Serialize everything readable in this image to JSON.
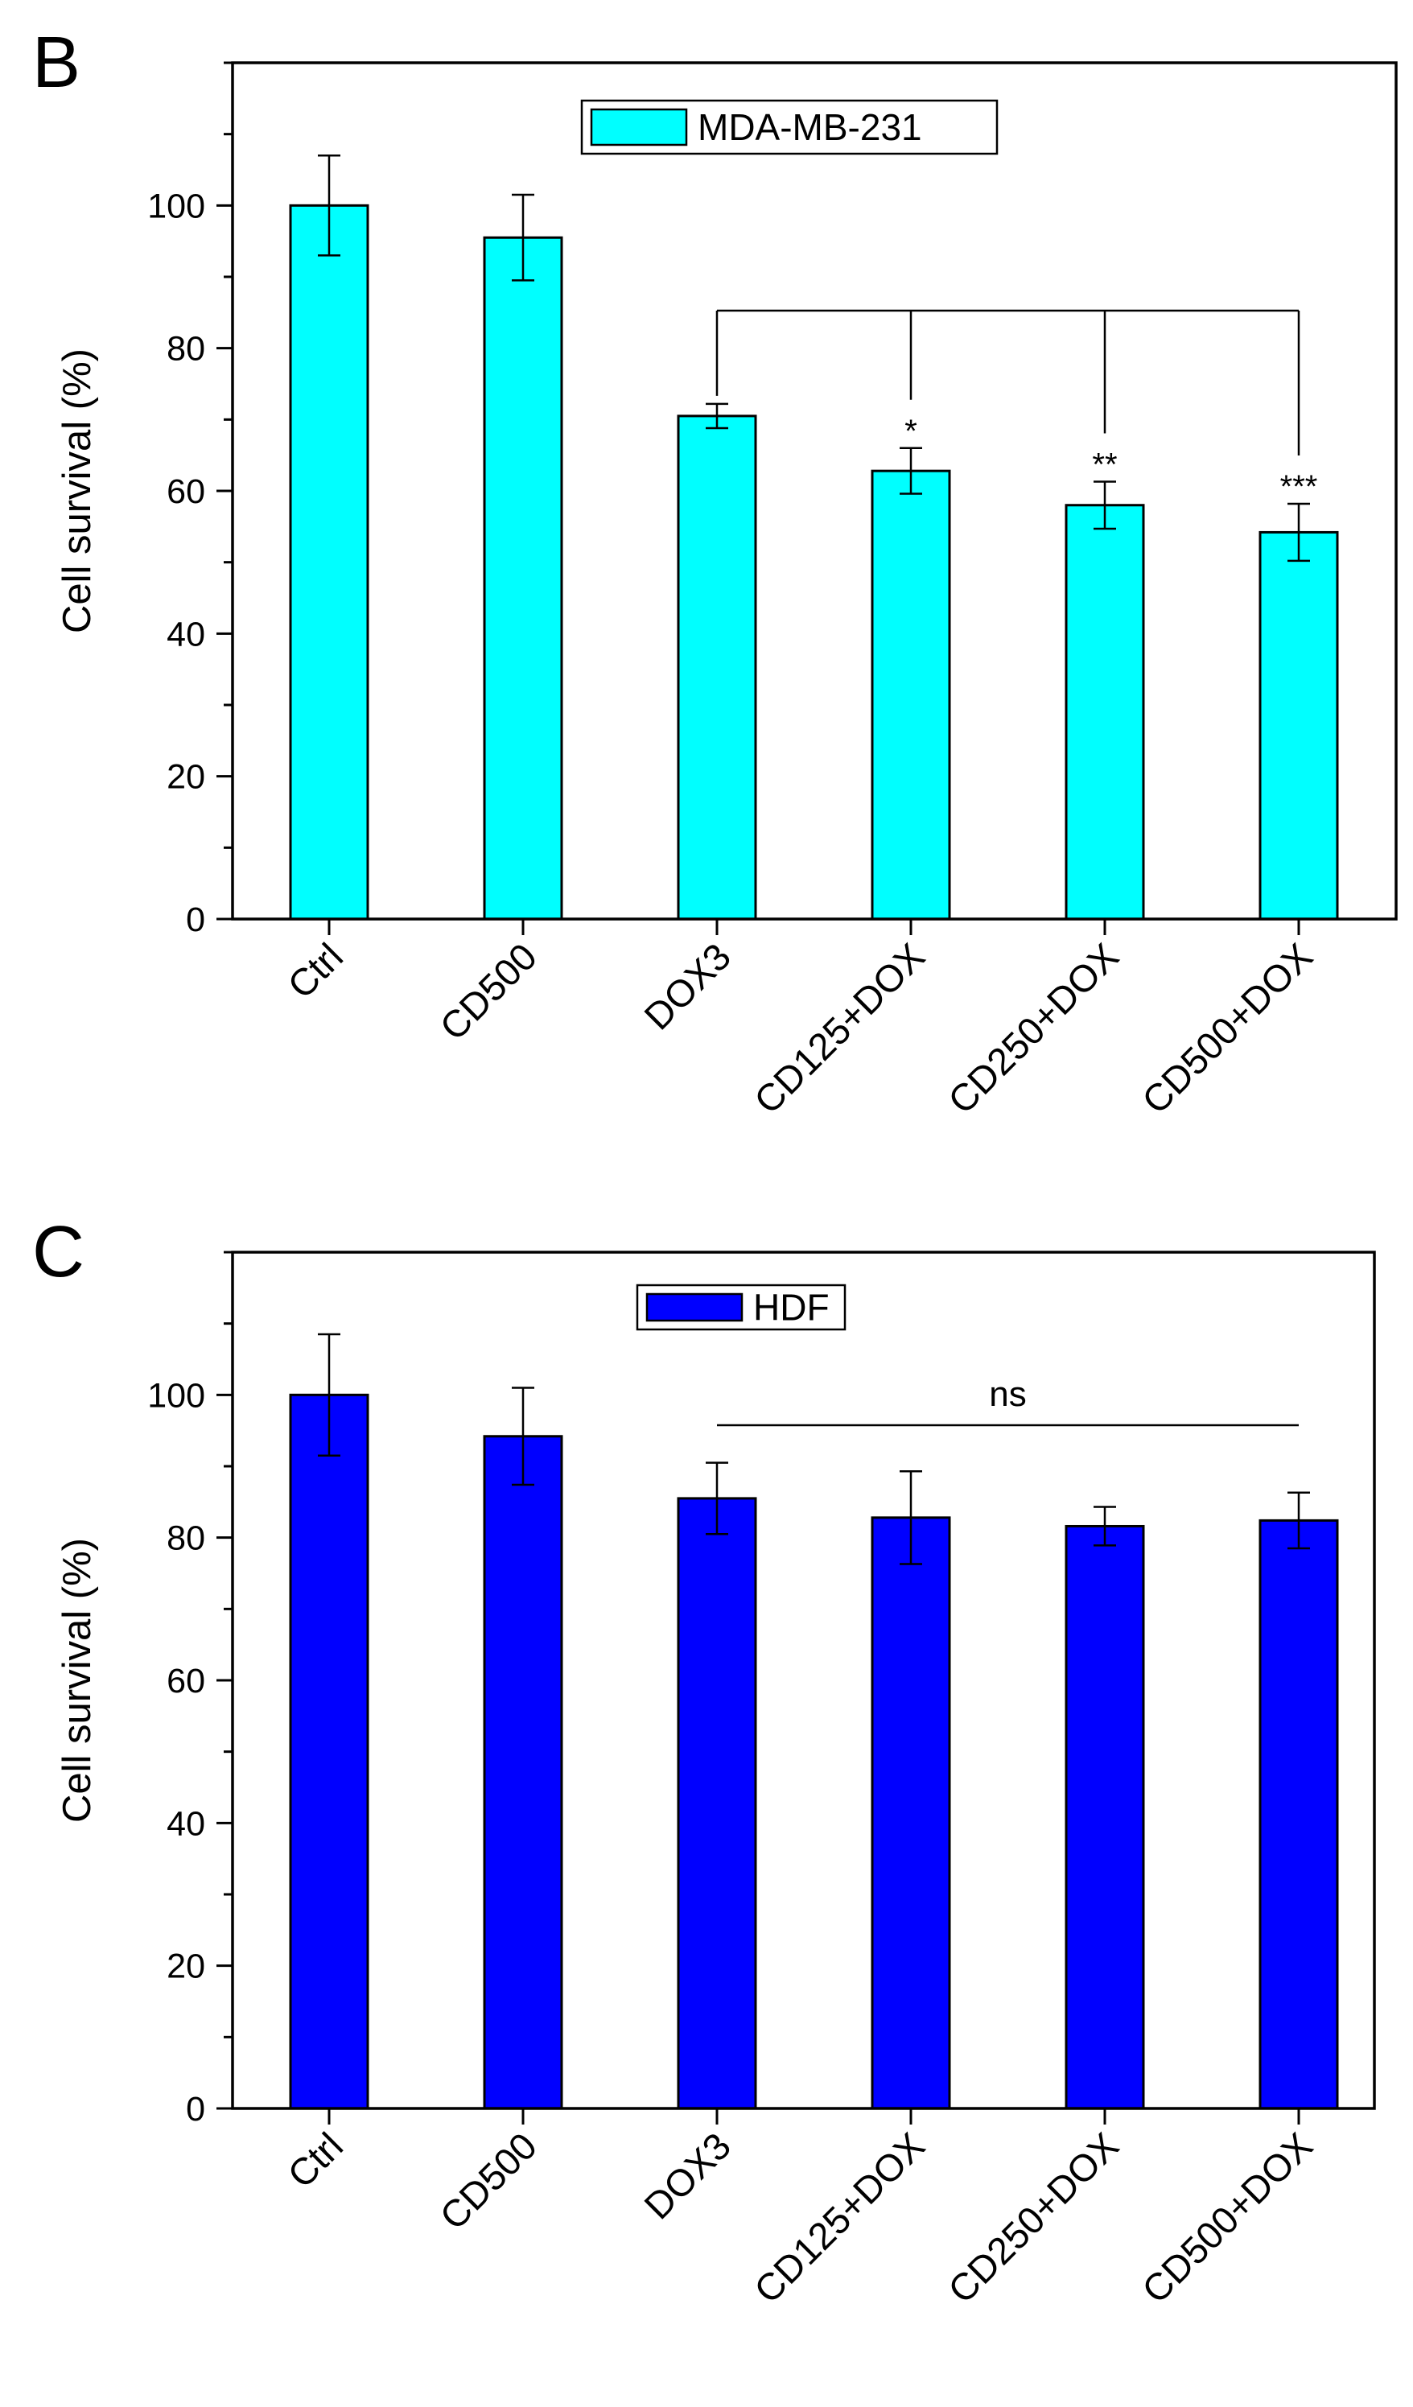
{
  "chart_data": [
    {
      "type": "bar",
      "panel_label": "B",
      "title": "",
      "xlabel": "",
      "ylabel": "Cell survival (%)",
      "ylim": [
        0,
        120
      ],
      "yticks": [
        0,
        20,
        40,
        60,
        80,
        100
      ],
      "categories": [
        "Ctrl",
        "CD500",
        "DOX3",
        "CD125+DOX",
        "CD250+DOX",
        "CD500+DOX"
      ],
      "series": [
        {
          "name": "MDA-MB-231",
          "color": "#00ffff",
          "values": [
            100,
            95.5,
            70.5,
            62.8,
            58.0,
            54.2
          ],
          "errors": [
            7.0,
            6.0,
            1.7,
            3.2,
            3.3,
            4.0
          ]
        }
      ],
      "legend": {
        "position": "top-center"
      },
      "significance": {
        "reference": "DOX3",
        "marks": [
          {
            "category": "CD125+DOX",
            "label": "*"
          },
          {
            "category": "CD250+DOX",
            "label": "**"
          },
          {
            "category": "CD500+DOX",
            "label": "***"
          }
        ]
      },
      "grid": false
    },
    {
      "type": "bar",
      "panel_label": "C",
      "title": "",
      "xlabel": "",
      "ylabel": "Cell survival (%)",
      "ylim": [
        0,
        120
      ],
      "yticks": [
        0,
        20,
        40,
        60,
        80,
        100
      ],
      "categories": [
        "Ctrl",
        "CD500",
        "DOX3",
        "CD125+DOX",
        "CD250+DOX",
        "CD500+DOX"
      ],
      "series": [
        {
          "name": "HDF",
          "color": "#0000ff",
          "values": [
            100,
            94.2,
            85.5,
            82.8,
            81.6,
            82.4
          ],
          "errors": [
            8.5,
            6.8,
            5.0,
            6.5,
            2.7,
            3.9
          ]
        }
      ],
      "legend": {
        "position": "top-center"
      },
      "significance": {
        "reference": "DOX3",
        "span_to": "CD500+DOX",
        "label": "ns"
      },
      "grid": false
    }
  ]
}
